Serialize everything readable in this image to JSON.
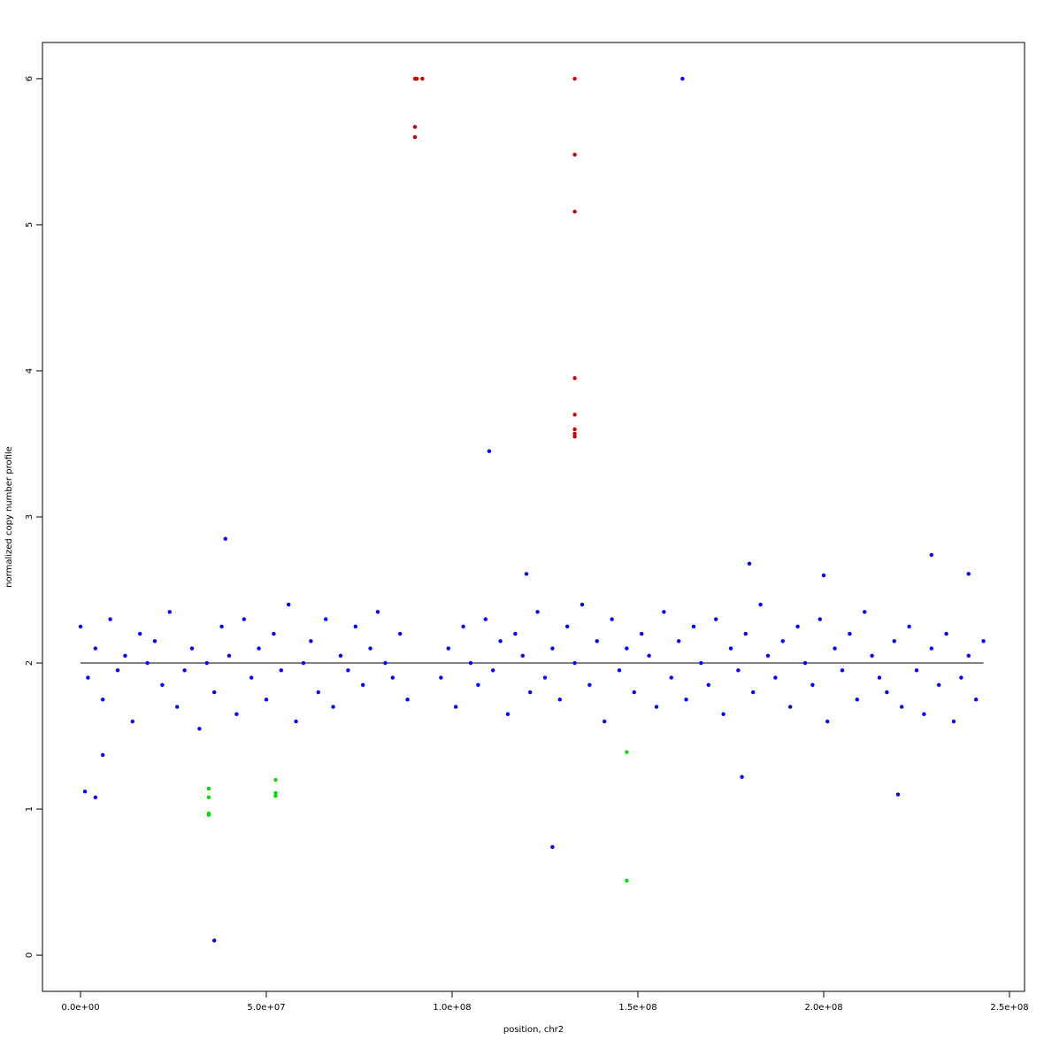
{
  "chart_data": {
    "type": "scatter",
    "xlabel": "position, chr2",
    "ylabel": "normalized copy number profile",
    "xlim": [
      -10240000,
      254050000
    ],
    "ylim": [
      -0.248,
      6.248
    ],
    "xticks": [
      {
        "value": 0,
        "label": "0.0e+00"
      },
      {
        "value": 50000000,
        "label": "5.0e+07"
      },
      {
        "value": 100000000,
        "label": "1.0e+08"
      },
      {
        "value": 150000000,
        "label": "1.5e+08"
      },
      {
        "value": 200000000,
        "label": "2.0e+08"
      },
      {
        "value": 250000000,
        "label": "2.5e+08"
      }
    ],
    "yticks": [
      0,
      1,
      2,
      3,
      4,
      5,
      6
    ],
    "reference_line": {
      "x": [
        0,
        243000000
      ],
      "y": 2,
      "color": "#000000"
    },
    "series": [
      {
        "color": "#0000ff",
        "x": [
          0,
          2000000.0,
          4000000.0,
          6000000.0,
          8000000.0,
          10000000.0,
          12000000.0,
          14000000.0,
          16000000.0,
          18000000.0,
          20000000.0,
          22000000.0,
          24000000.0,
          26000000.0,
          28000000.0,
          30000000.0,
          32000000.0,
          34000000.0,
          36000000.0,
          38000000.0,
          40000000.0,
          42000000.0,
          44000000.0,
          46000000.0,
          48000000.0,
          50000000.0,
          52000000.0,
          54000000.0,
          56000000.0,
          58000000.0,
          60000000.0,
          62000000.0,
          64000000.0,
          66000000.0,
          68000000.0,
          70000000.0,
          72000000.0,
          74000000.0,
          76000000.0,
          78000000.0,
          80000000.0,
          82000000.0,
          84000000.0,
          86000000.0,
          88000000.0,
          97000000.0,
          99000000.0,
          101000000.0,
          103000000.0,
          105000000.0,
          107000000.0,
          109000000.0,
          111000000.0,
          113000000.0,
          115000000.0,
          117000000.0,
          119000000.0,
          121000000.0,
          123000000.0,
          125000000.0,
          127000000.0,
          129000000.0,
          131000000.0,
          133000000.0,
          135000000.0,
          137000000.0,
          139000000.0,
          141000000.0,
          143000000.0,
          145000000.0,
          147000000.0,
          149000000.0,
          151000000.0,
          153000000.0,
          155000000.0,
          157000000.0,
          159000000.0,
          161000000.0,
          163000000.0,
          165000000.0,
          167000000.0,
          169000000.0,
          171000000.0,
          173000000.0,
          175000000.0,
          177000000.0,
          179000000.0,
          181000000.0,
          183000000.0,
          185000000.0,
          187000000.0,
          189000000.0,
          191000000.0,
          193000000.0,
          195000000.0,
          197000000.0,
          199000000.0,
          201000000.0,
          203000000.0,
          205000000.0,
          207000000.0,
          209000000.0,
          211000000.0,
          213000000.0,
          215000000.0,
          217000000.0,
          219000000.0,
          221000000.0,
          223000000.0,
          225000000.0,
          227000000.0,
          229000000.0,
          231000000.0,
          233000000.0,
          235000000.0,
          237000000.0,
          239000000.0,
          241000000.0,
          243000000.0,
          1200000.0,
          4000000.0,
          6000000.0,
          36000000.0,
          39000000.0,
          110000000.0,
          127000000.0,
          162000000.0,
          178000000.0,
          180000000.0,
          220000000.0,
          229000000.0,
          239000000.0,
          200000000.0,
          120000000.0
        ],
        "values": [
          2.25,
          1.9,
          2.1,
          1.75,
          2.3,
          1.95,
          2.05,
          1.6,
          2.2,
          2.0,
          2.15,
          1.85,
          2.35,
          1.7,
          1.95,
          2.1,
          1.55,
          2.0,
          1.8,
          2.25,
          2.05,
          1.65,
          2.3,
          1.9,
          2.1,
          1.75,
          2.2,
          1.95,
          2.4,
          1.6,
          2.0,
          2.15,
          1.8,
          2.3,
          1.7,
          2.05,
          1.95,
          2.25,
          1.85,
          2.1,
          2.35,
          2.0,
          1.9,
          2.2,
          1.75,
          1.9,
          2.1,
          1.7,
          2.25,
          2.0,
          1.85,
          2.3,
          1.95,
          2.15,
          1.65,
          2.2,
          2.05,
          1.8,
          2.35,
          1.9,
          2.1,
          1.75,
          2.25,
          2.0,
          2.4,
          1.85,
          2.15,
          1.6,
          2.3,
          1.95,
          2.1,
          1.8,
          2.2,
          2.05,
          1.7,
          2.35,
          1.9,
          2.15,
          1.75,
          2.25,
          2.0,
          1.85,
          2.3,
          1.65,
          2.1,
          1.95,
          2.2,
          1.8,
          2.4,
          2.05,
          1.9,
          2.15,
          1.7,
          2.25,
          2.0,
          1.85,
          2.3,
          1.6,
          2.1,
          1.95,
          2.2,
          1.75,
          2.35,
          2.05,
          1.9,
          1.8,
          2.15,
          1.7,
          2.25,
          1.95,
          1.65,
          2.1,
          1.85,
          2.2,
          1.6,
          1.9,
          2.05,
          1.75,
          2.15,
          1.12,
          1.08,
          1.37,
          0.1,
          2.85,
          3.45,
          0.74,
          6.0,
          1.22,
          2.68,
          1.1,
          2.74,
          2.61,
          2.6,
          2.61
        ]
      },
      {
        "color": "#cc0000",
        "x": [
          90000000.0,
          90500000.0,
          92000000.0,
          90000000.0,
          90000000.0,
          133000000.0,
          133000000.0,
          133000000.0,
          133000000.0,
          133000000.0,
          133000000.0,
          133000000.0,
          133000000.0
        ],
        "values": [
          6.0,
          6.0,
          6.0,
          5.67,
          5.6,
          6.0,
          5.48,
          5.09,
          3.95,
          3.7,
          3.6,
          3.57,
          3.55
        ]
      },
      {
        "color": "#00dd00",
        "x": [
          34500000.0,
          34500000.0,
          34500000.0,
          34500000.0,
          52500000.0,
          52500000.0,
          52500000.0,
          147000000.0,
          147000000.0
        ],
        "values": [
          1.14,
          1.08,
          0.97,
          0.96,
          1.2,
          1.11,
          1.09,
          1.39,
          0.51
        ]
      }
    ]
  }
}
